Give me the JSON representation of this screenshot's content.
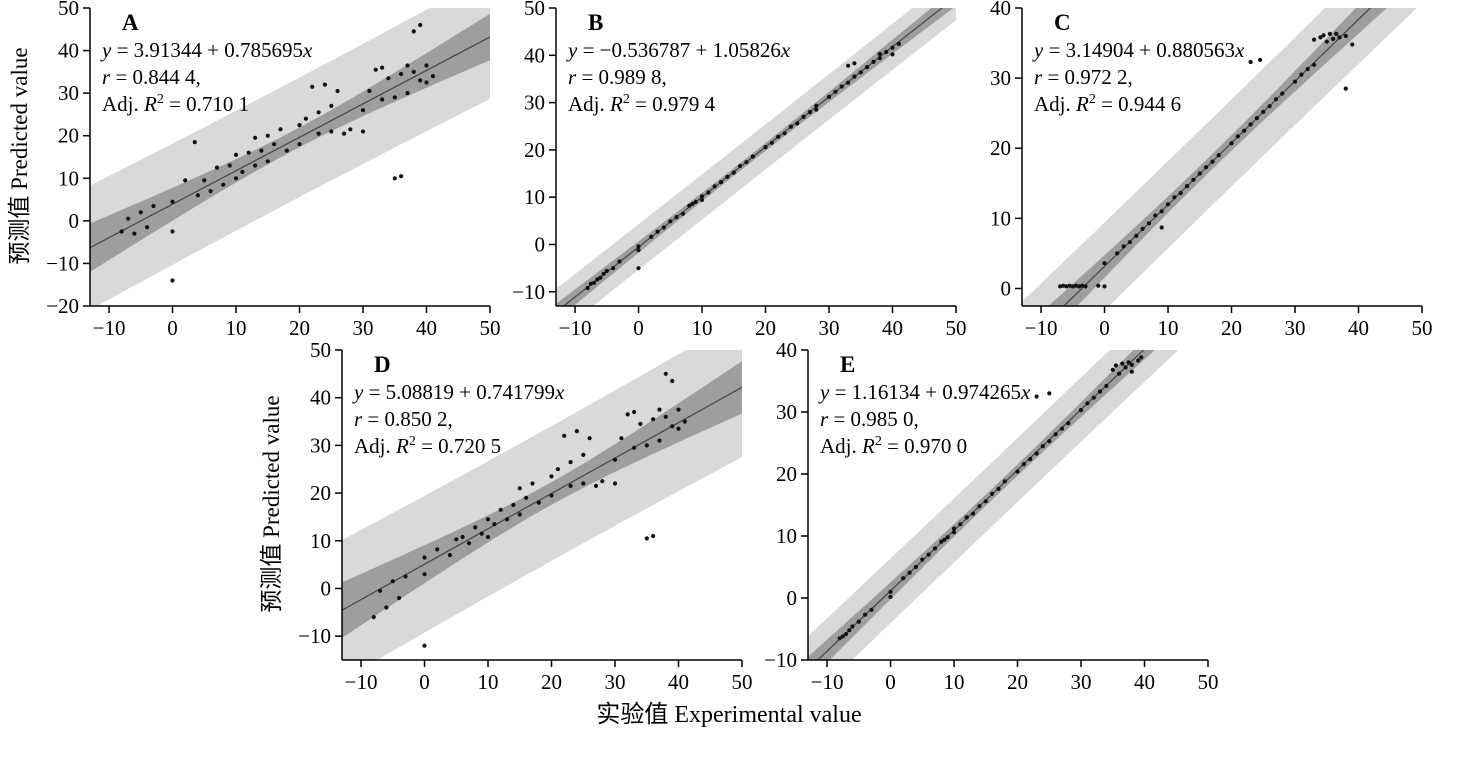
{
  "figure": {
    "x_axis_label": "实验值 Experimental value",
    "y_axis_label": "预测值 Predicted value"
  },
  "style_colors": {
    "prediction_band": "#d9d9d9",
    "confidence_band": "#9e9e9e",
    "regression_line": "#4a4a4a",
    "point": "#111111",
    "axis": "#000000"
  },
  "chart_data": [
    {
      "type": "scatter",
      "panel_label": "A",
      "xlabel": "实验值 Experimental value",
      "ylabel": "预测值 Predicted value",
      "fit": {
        "intercept": 3.91344,
        "slope": 0.785695
      },
      "stats": {
        "r": "0.844 4",
        "adj_r2": "0.710 1"
      },
      "xlim": [
        -13,
        50
      ],
      "ylim": [
        -20,
        50
      ],
      "xticks": [
        -10,
        0,
        10,
        20,
        30,
        40,
        50
      ],
      "yticks": [
        -20,
        -10,
        0,
        10,
        20,
        30,
        40,
        50
      ],
      "points": [
        [
          -8,
          -2.5
        ],
        [
          -7,
          0.5
        ],
        [
          -6,
          -3
        ],
        [
          -5,
          2
        ],
        [
          -4,
          -1.5
        ],
        [
          -3,
          3.5
        ],
        [
          0,
          -14
        ],
        [
          0,
          -2.5
        ],
        [
          0,
          4.5
        ],
        [
          2,
          9.5
        ],
        [
          3.5,
          18.5
        ],
        [
          4,
          6
        ],
        [
          5,
          9.5
        ],
        [
          6,
          7
        ],
        [
          7,
          12.5
        ],
        [
          8,
          8.5
        ],
        [
          9,
          13
        ],
        [
          10,
          10
        ],
        [
          10,
          15.5
        ],
        [
          11,
          11.5
        ],
        [
          12,
          16
        ],
        [
          13,
          13
        ],
        [
          13,
          19.5
        ],
        [
          14,
          16.5
        ],
        [
          15,
          14
        ],
        [
          15,
          20
        ],
        [
          16,
          18
        ],
        [
          17,
          21.5
        ],
        [
          18,
          16.5
        ],
        [
          20,
          22.5
        ],
        [
          20,
          18
        ],
        [
          21,
          24
        ],
        [
          22,
          31.5
        ],
        [
          23,
          25.5
        ],
        [
          23,
          20.5
        ],
        [
          24,
          32
        ],
        [
          25,
          21
        ],
        [
          25,
          27
        ],
        [
          26,
          30.5
        ],
        [
          27,
          20.5
        ],
        [
          28,
          21.5
        ],
        [
          30,
          26
        ],
        [
          30,
          21
        ],
        [
          31,
          30.5
        ],
        [
          32,
          35.5
        ],
        [
          33,
          28.5
        ],
        [
          33,
          36
        ],
        [
          34,
          33.5
        ],
        [
          35,
          10
        ],
        [
          35,
          29
        ],
        [
          36,
          10.5
        ],
        [
          36,
          34.5
        ],
        [
          37,
          36.5
        ],
        [
          37,
          30
        ],
        [
          38,
          44.5
        ],
        [
          38,
          35
        ],
        [
          39,
          46
        ],
        [
          39,
          33
        ],
        [
          40,
          36.5
        ],
        [
          40,
          32.5
        ],
        [
          41,
          34
        ]
      ]
    },
    {
      "type": "scatter",
      "panel_label": "B",
      "xlabel": "实验值 Experimental value",
      "ylabel": "预测值 Predicted value",
      "fit": {
        "intercept": -0.536787,
        "slope": 1.05826
      },
      "stats": {
        "r": "0.989 8",
        "adj_r2": "0.979 4"
      },
      "xlim": [
        -13,
        50
      ],
      "ylim": [
        -13,
        50
      ],
      "xticks": [
        -10,
        0,
        10,
        20,
        30,
        40,
        50
      ],
      "yticks": [
        -10,
        0,
        10,
        20,
        30,
        40,
        50
      ],
      "points": [
        [
          -8,
          -9.2
        ],
        [
          -7.5,
          -8.3
        ],
        [
          -7,
          -8.1
        ],
        [
          -6.5,
          -7.4
        ],
        [
          -6,
          -7
        ],
        [
          -5.5,
          -6.2
        ],
        [
          -5,
          -5.6
        ],
        [
          -4,
          -5
        ],
        [
          -3,
          -3.6
        ],
        [
          0,
          -0.4
        ],
        [
          0,
          -1.2
        ],
        [
          0,
          -5
        ],
        [
          2,
          1.6
        ],
        [
          3,
          2.7
        ],
        [
          4,
          3.6
        ],
        [
          5,
          4.9
        ],
        [
          6,
          5.8
        ],
        [
          7,
          6.5
        ],
        [
          8,
          8.2
        ],
        [
          8.5,
          8.6
        ],
        [
          9,
          9
        ],
        [
          10,
          10.2
        ],
        [
          10,
          9.4
        ],
        [
          11,
          11
        ],
        [
          12,
          12.3
        ],
        [
          13,
          13.2
        ],
        [
          14,
          14.3
        ],
        [
          15,
          15.2
        ],
        [
          16,
          16.6
        ],
        [
          17,
          17.4
        ],
        [
          18,
          18.6
        ],
        [
          20,
          20.6
        ],
        [
          21,
          21.5
        ],
        [
          22,
          22.8
        ],
        [
          23,
          23.5
        ],
        [
          24,
          24.9
        ],
        [
          25,
          25.6
        ],
        [
          26,
          27
        ],
        [
          27,
          28
        ],
        [
          28,
          28.5
        ],
        [
          28,
          29.3
        ],
        [
          30,
          31.2
        ],
        [
          31,
          32.3
        ],
        [
          32,
          33.4
        ],
        [
          33,
          34.2
        ],
        [
          33,
          37.8
        ],
        [
          34,
          35.5
        ],
        [
          34,
          38.3
        ],
        [
          35,
          36.4
        ],
        [
          36,
          37.5
        ],
        [
          37,
          38.6
        ],
        [
          38,
          39.4
        ],
        [
          38,
          40.3
        ],
        [
          39,
          40.7
        ],
        [
          40,
          40.2
        ],
        [
          40,
          41.6
        ],
        [
          41,
          42.4
        ]
      ]
    },
    {
      "type": "scatter",
      "panel_label": "C",
      "xlabel": "实验值 Experimental value",
      "ylabel": "预测值 Predicted value",
      "fit": {
        "intercept": 3.14904,
        "slope": 0.880563
      },
      "stats": {
        "r": "0.972 2",
        "adj_r2": "0.944 6"
      },
      "xlim": [
        -13,
        50
      ],
      "ylim": [
        -2.5,
        40
      ],
      "xticks": [
        -10,
        0,
        10,
        20,
        30,
        40,
        50
      ],
      "yticks": [
        0,
        10,
        20,
        30,
        40
      ],
      "points": [
        [
          -7,
          0.3
        ],
        [
          -6.5,
          0.4
        ],
        [
          -6,
          0.3
        ],
        [
          -5.5,
          0.4
        ],
        [
          -5,
          0.3
        ],
        [
          -4.5,
          0.4
        ],
        [
          -4,
          0.3
        ],
        [
          -3.5,
          0.4
        ],
        [
          -3,
          0.3
        ],
        [
          -1,
          0.4
        ],
        [
          0,
          0.3
        ],
        [
          0,
          3.6
        ],
        [
          2,
          5
        ],
        [
          3,
          6
        ],
        [
          4,
          6.6
        ],
        [
          5,
          7.5
        ],
        [
          6,
          8.5
        ],
        [
          7,
          9.3
        ],
        [
          8,
          10.4
        ],
        [
          9,
          8.7
        ],
        [
          9,
          11
        ],
        [
          10,
          12
        ],
        [
          11,
          13
        ],
        [
          12,
          13.6
        ],
        [
          13,
          14.6
        ],
        [
          14,
          15.5
        ],
        [
          15,
          16.4
        ],
        [
          16,
          17.3
        ],
        [
          17,
          18.1
        ],
        [
          18,
          19
        ],
        [
          20,
          20.7
        ],
        [
          21,
          21.7
        ],
        [
          22,
          22.5
        ],
        [
          23,
          23.4
        ],
        [
          23,
          32.3
        ],
        [
          24,
          24.3
        ],
        [
          24.5,
          32.6
        ],
        [
          25,
          25.2
        ],
        [
          26,
          26
        ],
        [
          27,
          27
        ],
        [
          28,
          27.8
        ],
        [
          30,
          29.5
        ],
        [
          31,
          30.5
        ],
        [
          32,
          31.3
        ],
        [
          33,
          35.5
        ],
        [
          33,
          31.9
        ],
        [
          34,
          35.8
        ],
        [
          34.5,
          36.1
        ],
        [
          35,
          35.2
        ],
        [
          35.5,
          36.3
        ],
        [
          36,
          35.6
        ],
        [
          36.5,
          36.3
        ],
        [
          37,
          35.8
        ],
        [
          38,
          36
        ],
        [
          38,
          28.5
        ],
        [
          39,
          34.8
        ]
      ]
    },
    {
      "type": "scatter",
      "panel_label": "D",
      "xlabel": "实验值 Experimental value",
      "ylabel": "预测值 Predicted value",
      "fit": {
        "intercept": 5.08819,
        "slope": 0.741799
      },
      "stats": {
        "r": "0.850 2",
        "adj_r2": "0.720 5"
      },
      "xlim": [
        -13,
        50
      ],
      "ylim": [
        -15,
        50
      ],
      "xticks": [
        -10,
        0,
        10,
        20,
        30,
        40,
        50
      ],
      "yticks": [
        -10,
        0,
        10,
        20,
        30,
        40,
        50
      ],
      "points": [
        [
          -8,
          -6
        ],
        [
          -7,
          -0.5
        ],
        [
          -6,
          -4
        ],
        [
          -5,
          1.5
        ],
        [
          -4,
          -2
        ],
        [
          -3,
          2.5
        ],
        [
          0,
          -12
        ],
        [
          0,
          3
        ],
        [
          0,
          6.5
        ],
        [
          2,
          8.2
        ],
        [
          4,
          7
        ],
        [
          5,
          10.3
        ],
        [
          6,
          10.8
        ],
        [
          7,
          9.5
        ],
        [
          8,
          12.8
        ],
        [
          9,
          11.5
        ],
        [
          10,
          14.5
        ],
        [
          10,
          10.8
        ],
        [
          11,
          13.5
        ],
        [
          12,
          16.5
        ],
        [
          13,
          14.5
        ],
        [
          14,
          17.5
        ],
        [
          15,
          15.5
        ],
        [
          15,
          21
        ],
        [
          16,
          19
        ],
        [
          17,
          22
        ],
        [
          18,
          18
        ],
        [
          20,
          23.5
        ],
        [
          20,
          19.5
        ],
        [
          21,
          25
        ],
        [
          22,
          32
        ],
        [
          23,
          26.5
        ],
        [
          23,
          21.5
        ],
        [
          24,
          33
        ],
        [
          25,
          22
        ],
        [
          25,
          28
        ],
        [
          26,
          31.5
        ],
        [
          27,
          21.5
        ],
        [
          28,
          22.5
        ],
        [
          30,
          27
        ],
        [
          30,
          22
        ],
        [
          31,
          31.5
        ],
        [
          32,
          36.5
        ],
        [
          33,
          29.5
        ],
        [
          33,
          37
        ],
        [
          34,
          34.5
        ],
        [
          35,
          10.5
        ],
        [
          35,
          30
        ],
        [
          36,
          11
        ],
        [
          36,
          35.5
        ],
        [
          37,
          37.5
        ],
        [
          37,
          31
        ],
        [
          38,
          45
        ],
        [
          38,
          36
        ],
        [
          39,
          43.5
        ],
        [
          39,
          34
        ],
        [
          40,
          37.5
        ],
        [
          40,
          33.5
        ],
        [
          41,
          35
        ]
      ]
    },
    {
      "type": "scatter",
      "panel_label": "E",
      "xlabel": "实验值 Experimental value",
      "ylabel": "预测值 Predicted value",
      "fit": {
        "intercept": 1.16134,
        "slope": 0.974265
      },
      "stats": {
        "r": "0.985 0",
        "adj_r2": "0.970 0"
      },
      "xlim": [
        -13,
        50
      ],
      "ylim": [
        -10,
        40
      ],
      "xticks": [
        -10,
        0,
        10,
        20,
        30,
        40,
        50
      ],
      "yticks": [
        -10,
        0,
        10,
        20,
        30,
        40
      ],
      "points": [
        [
          -8,
          -6.5
        ],
        [
          -7.5,
          -6.2
        ],
        [
          -7,
          -5.8
        ],
        [
          -6.5,
          -5.2
        ],
        [
          -6,
          -4.6
        ],
        [
          -5,
          -3.8
        ],
        [
          -4,
          -2.7
        ],
        [
          -3,
          -1.9
        ],
        [
          0,
          1
        ],
        [
          0,
          0.2
        ],
        [
          2,
          3.2
        ],
        [
          3,
          4.1
        ],
        [
          4,
          5
        ],
        [
          5,
          6.2
        ],
        [
          6,
          7
        ],
        [
          7,
          8
        ],
        [
          8,
          9.1
        ],
        [
          8.5,
          9.4
        ],
        [
          9,
          9.8
        ],
        [
          10,
          10.6
        ],
        [
          10,
          11.2
        ],
        [
          11,
          11.9
        ],
        [
          12,
          13
        ],
        [
          13,
          13.6
        ],
        [
          14,
          14.8
        ],
        [
          15,
          15.6
        ],
        [
          16,
          16.8
        ],
        [
          17,
          17.6
        ],
        [
          18,
          18.8
        ],
        [
          20,
          20.4
        ],
        [
          21,
          21.6
        ],
        [
          22,
          22.4
        ],
        [
          23,
          23.3
        ],
        [
          23,
          32.5
        ],
        [
          24,
          24.5
        ],
        [
          25,
          33
        ],
        [
          25,
          25.3
        ],
        [
          26,
          26.4
        ],
        [
          27,
          27.3
        ],
        [
          28,
          28.2
        ],
        [
          30,
          30.3
        ],
        [
          31,
          31.4
        ],
        [
          32,
          32.3
        ],
        [
          33,
          33.3
        ],
        [
          34,
          34.2
        ],
        [
          35,
          36.8
        ],
        [
          35.5,
          37.5
        ],
        [
          36,
          36.2
        ],
        [
          36.5,
          37.8
        ],
        [
          37,
          37.2
        ],
        [
          37.5,
          38
        ],
        [
          38,
          37.6
        ],
        [
          38,
          36.5
        ],
        [
          39,
          38.3
        ],
        [
          39.5,
          38.8
        ]
      ]
    }
  ]
}
